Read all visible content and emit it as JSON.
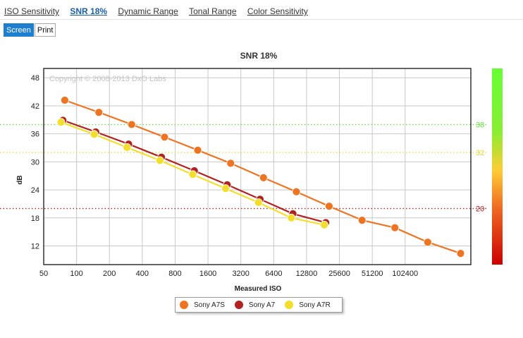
{
  "tabs": [
    {
      "label": "ISO Sensitivity",
      "active": false
    },
    {
      "label": "SNR 18%",
      "active": true
    },
    {
      "label": "Dynamic Range",
      "active": false
    },
    {
      "label": "Tonal Range",
      "active": false
    },
    {
      "label": "Color Sensitivity",
      "active": false
    }
  ],
  "mode": {
    "screen_label": "Screen",
    "print_label": "Print"
  },
  "chart_data": {
    "type": "line",
    "title": "SNR 18%",
    "xlabel": "Measured ISO",
    "ylabel": "dB",
    "watermark": "Copyright © 2008-2013 DxO Labs",
    "x_scale": "log2",
    "x_ticks": [
      50,
      100,
      200,
      400,
      800,
      1600,
      3200,
      6400,
      12800,
      25600,
      51200,
      102400
    ],
    "xlim": [
      50,
      409600
    ],
    "y_ticks": [
      12,
      18,
      24,
      30,
      36,
      42,
      48
    ],
    "ylim": [
      8,
      50
    ],
    "grid": true,
    "legend_position": "bottom-center",
    "reference_lines": [
      {
        "value": 38,
        "label": "38",
        "color": "#66dd44"
      },
      {
        "value": 32,
        "label": "32",
        "color": "#dddd33"
      },
      {
        "value": 20,
        "label": "20",
        "color": "#aa2222"
      }
    ],
    "series": [
      {
        "name": "Sony A7S",
        "color": "#ef7422",
        "x": [
          78,
          160,
          320,
          640,
          1290,
          2580,
          5160,
          10320,
          20600,
          41300,
          82500,
          165000,
          330000
        ],
        "y": [
          43.2,
          40.6,
          38.0,
          35.3,
          32.5,
          29.7,
          26.6,
          23.6,
          20.5,
          17.5,
          15.9,
          12.8,
          10.4
        ]
      },
      {
        "name": "Sony A7",
        "color": "#b22222",
        "x": [
          75,
          150,
          300,
          600,
          1200,
          2400,
          4800,
          9600,
          19200
        ],
        "y": [
          38.9,
          36.4,
          33.8,
          31.0,
          28.1,
          25.1,
          22.0,
          18.9,
          17.0
        ]
      },
      {
        "name": "Sony A7R",
        "color": "#f3de2c",
        "x": [
          72,
          145,
          290,
          580,
          1160,
          2320,
          4640,
          9280,
          18600
        ],
        "y": [
          38.5,
          35.9,
          33.1,
          30.3,
          27.3,
          24.3,
          21.3,
          18.0,
          16.5
        ]
      }
    ]
  }
}
